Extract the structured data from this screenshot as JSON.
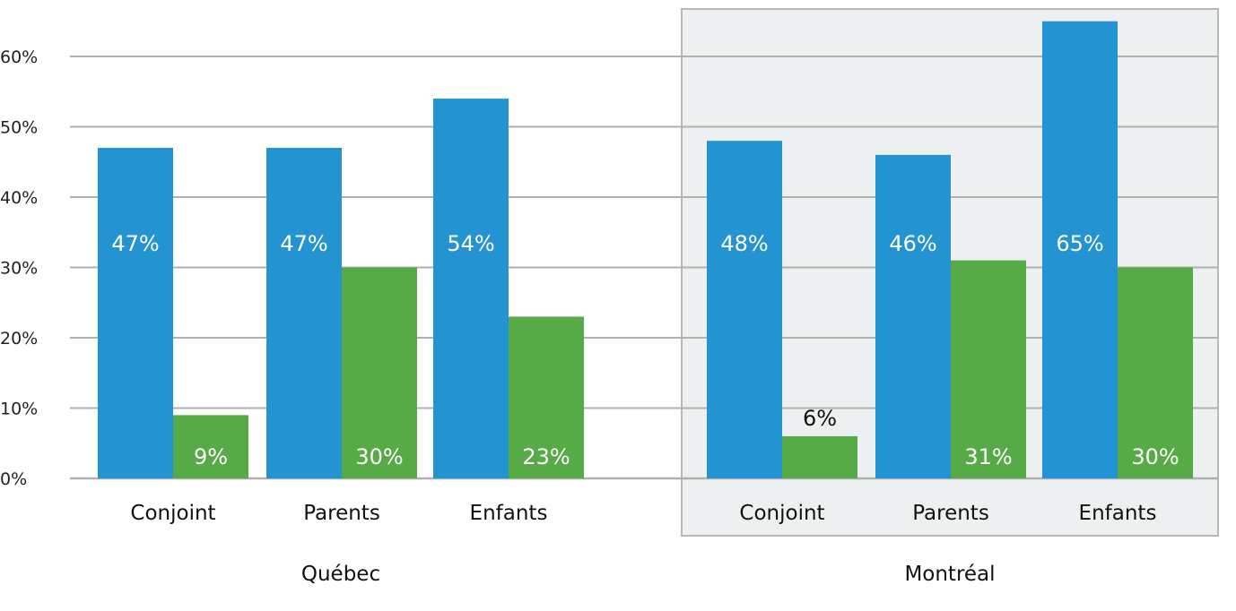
{
  "colors": {
    "blue": "#2393d1",
    "green": "#56ab46",
    "grid": "#b0b0b0",
    "panel_fill": "#ecf0f1",
    "panel_border": "#b8b8b8",
    "label_light": "#ffffff",
    "label_dark": "#111111"
  },
  "chart_data": {
    "type": "bar",
    "y_ticks": [
      "0%",
      "10%",
      "20%",
      "30%",
      "40%",
      "50%",
      "60%"
    ],
    "ylim": [
      0,
      70
    ],
    "grid": true,
    "groups": [
      {
        "name": "Québec",
        "highlighted": false,
        "categories": [
          "Conjoint",
          "Parents",
          "Enfants"
        ],
        "series": [
          {
            "values": [
              47,
              47,
              54
            ],
            "labels": [
              "47%",
              "47%",
              "54%"
            ]
          },
          {
            "values": [
              9,
              30,
              23
            ],
            "labels": [
              "9%",
              "30%",
              "23%"
            ]
          }
        ]
      },
      {
        "name": "Montréal",
        "highlighted": true,
        "categories": [
          "Conjoint",
          "Parents",
          "Enfants"
        ],
        "series": [
          {
            "values": [
              48,
              46,
              65
            ],
            "labels": [
              "48%",
              "46%",
              "65%"
            ]
          },
          {
            "values": [
              6,
              31,
              30
            ],
            "labels": [
              "6%",
              "31%",
              "30%"
            ]
          }
        ]
      }
    ]
  }
}
